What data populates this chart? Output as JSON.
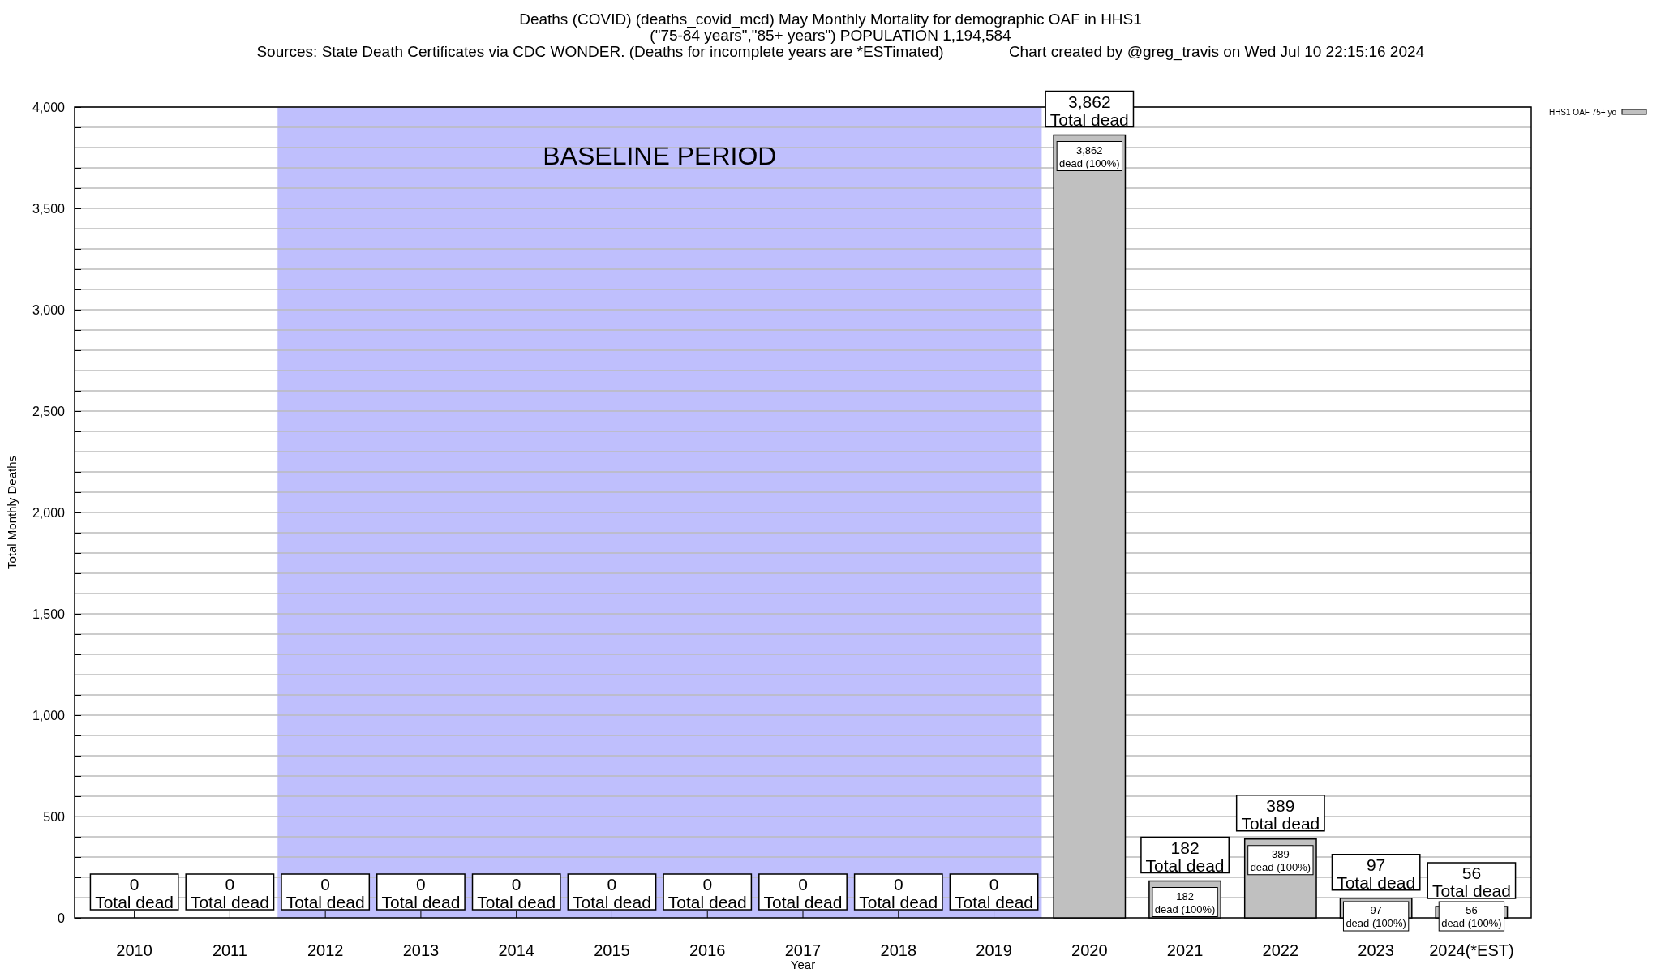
{
  "chart_data": {
    "type": "bar",
    "title": "Deaths (COVID) (deaths_covid_mcd) May Monthly Mortality for demographic OAF in HHS1",
    "subtitle": "(\"75-84 years\",\"85+ years\") POPULATION 1,194,584",
    "annotations": [
      "Sources: State Death Certificates via CDC WONDER. (Deaths for incomplete years are *ESTimated)",
      "Chart created by @greg_travis on Wed Jul 10 22:15:16 2024"
    ],
    "xlabel": "Year",
    "ylabel": "Total Monthly Deaths",
    "categories": [
      "2010",
      "2011",
      "2012",
      "2013",
      "2014",
      "2015",
      "2016",
      "2017",
      "2018",
      "2019",
      "2020",
      "2021",
      "2022",
      "2023",
      "2024(*EST)"
    ],
    "series": [
      {
        "name": "HHS1 OAF 75+ yo",
        "color": "#c0c0c0",
        "values": [
          0,
          0,
          0,
          0,
          0,
          0,
          0,
          0,
          0,
          0,
          3862,
          182,
          389,
          97,
          56
        ],
        "value_labels": [
          null,
          null,
          null,
          null,
          null,
          null,
          null,
          null,
          null,
          null,
          "3,862\ndead (100%)",
          "182\ndead (100%)",
          "389\ndead (100%)",
          "97\ndead (100%)",
          "56\ndead (100%)"
        ]
      }
    ],
    "totals": [
      "0\nTotal dead",
      "0\nTotal dead",
      "0\nTotal dead",
      "0\nTotal dead",
      "0\nTotal dead",
      "0\nTotal dead",
      "0\nTotal dead",
      "0\nTotal dead",
      "0\nTotal dead",
      "0\nTotal dead",
      "3,862\nTotal dead",
      "182\nTotal dead",
      "389\nTotal dead",
      "97\nTotal dead",
      "56\nTotal dead"
    ],
    "bands": [
      {
        "axis": "x",
        "from": "2012",
        "to": "2019",
        "label": "BASELINE PERIOD",
        "color": "#bfbffd"
      }
    ],
    "ylim": [
      0,
      4000
    ],
    "yticks": [
      0,
      {
        "value": 100,
        "label": null
      },
      {
        "value": 200,
        "label": null
      },
      {
        "value": 300,
        "label": null
      },
      {
        "value": 400,
        "label": null
      },
      {
        "value": 500,
        "label": "500"
      },
      {
        "value": 600,
        "label": null
      },
      {
        "value": 700,
        "label": null
      },
      {
        "value": 800,
        "label": null
      },
      {
        "value": 900,
        "label": null
      },
      {
        "value": 1000,
        "label": "1,000"
      },
      {
        "value": 1100,
        "label": null
      },
      {
        "value": 1200,
        "label": null
      },
      {
        "value": 1300,
        "label": null
      },
      {
        "value": 1400,
        "label": null
      },
      {
        "value": 1500,
        "label": "1,500"
      },
      {
        "value": 1600,
        "label": null
      },
      {
        "value": 1700,
        "label": null
      },
      {
        "value": 1800,
        "label": null
      },
      {
        "value": 1900,
        "label": null
      },
      {
        "value": 2000,
        "label": "2,000"
      },
      {
        "value": 2100,
        "label": null
      },
      {
        "value": 2200,
        "label": null
      },
      {
        "value": 2300,
        "label": null
      },
      {
        "value": 2400,
        "label": null
      },
      {
        "value": 2500,
        "label": "2,500"
      },
      {
        "value": 2600,
        "label": null
      },
      {
        "value": 2700,
        "label": null
      },
      {
        "value": 2800,
        "label": null
      },
      {
        "value": 2900,
        "label": null
      },
      {
        "value": 3000,
        "label": "3,000"
      },
      {
        "value": 3100,
        "label": null
      },
      {
        "value": 3200,
        "label": null
      },
      {
        "value": 3300,
        "label": null
      },
      {
        "value": 3400,
        "label": null
      },
      {
        "value": 3500,
        "label": "3,500"
      },
      {
        "value": 3600,
        "label": null
      },
      {
        "value": 3700,
        "label": null
      },
      {
        "value": 3800,
        "label": null
      },
      {
        "value": 3900,
        "label": null
      },
      {
        "value": 4000,
        "label": "4,000"
      }
    ],
    "grid": "y",
    "legend": "top right"
  }
}
